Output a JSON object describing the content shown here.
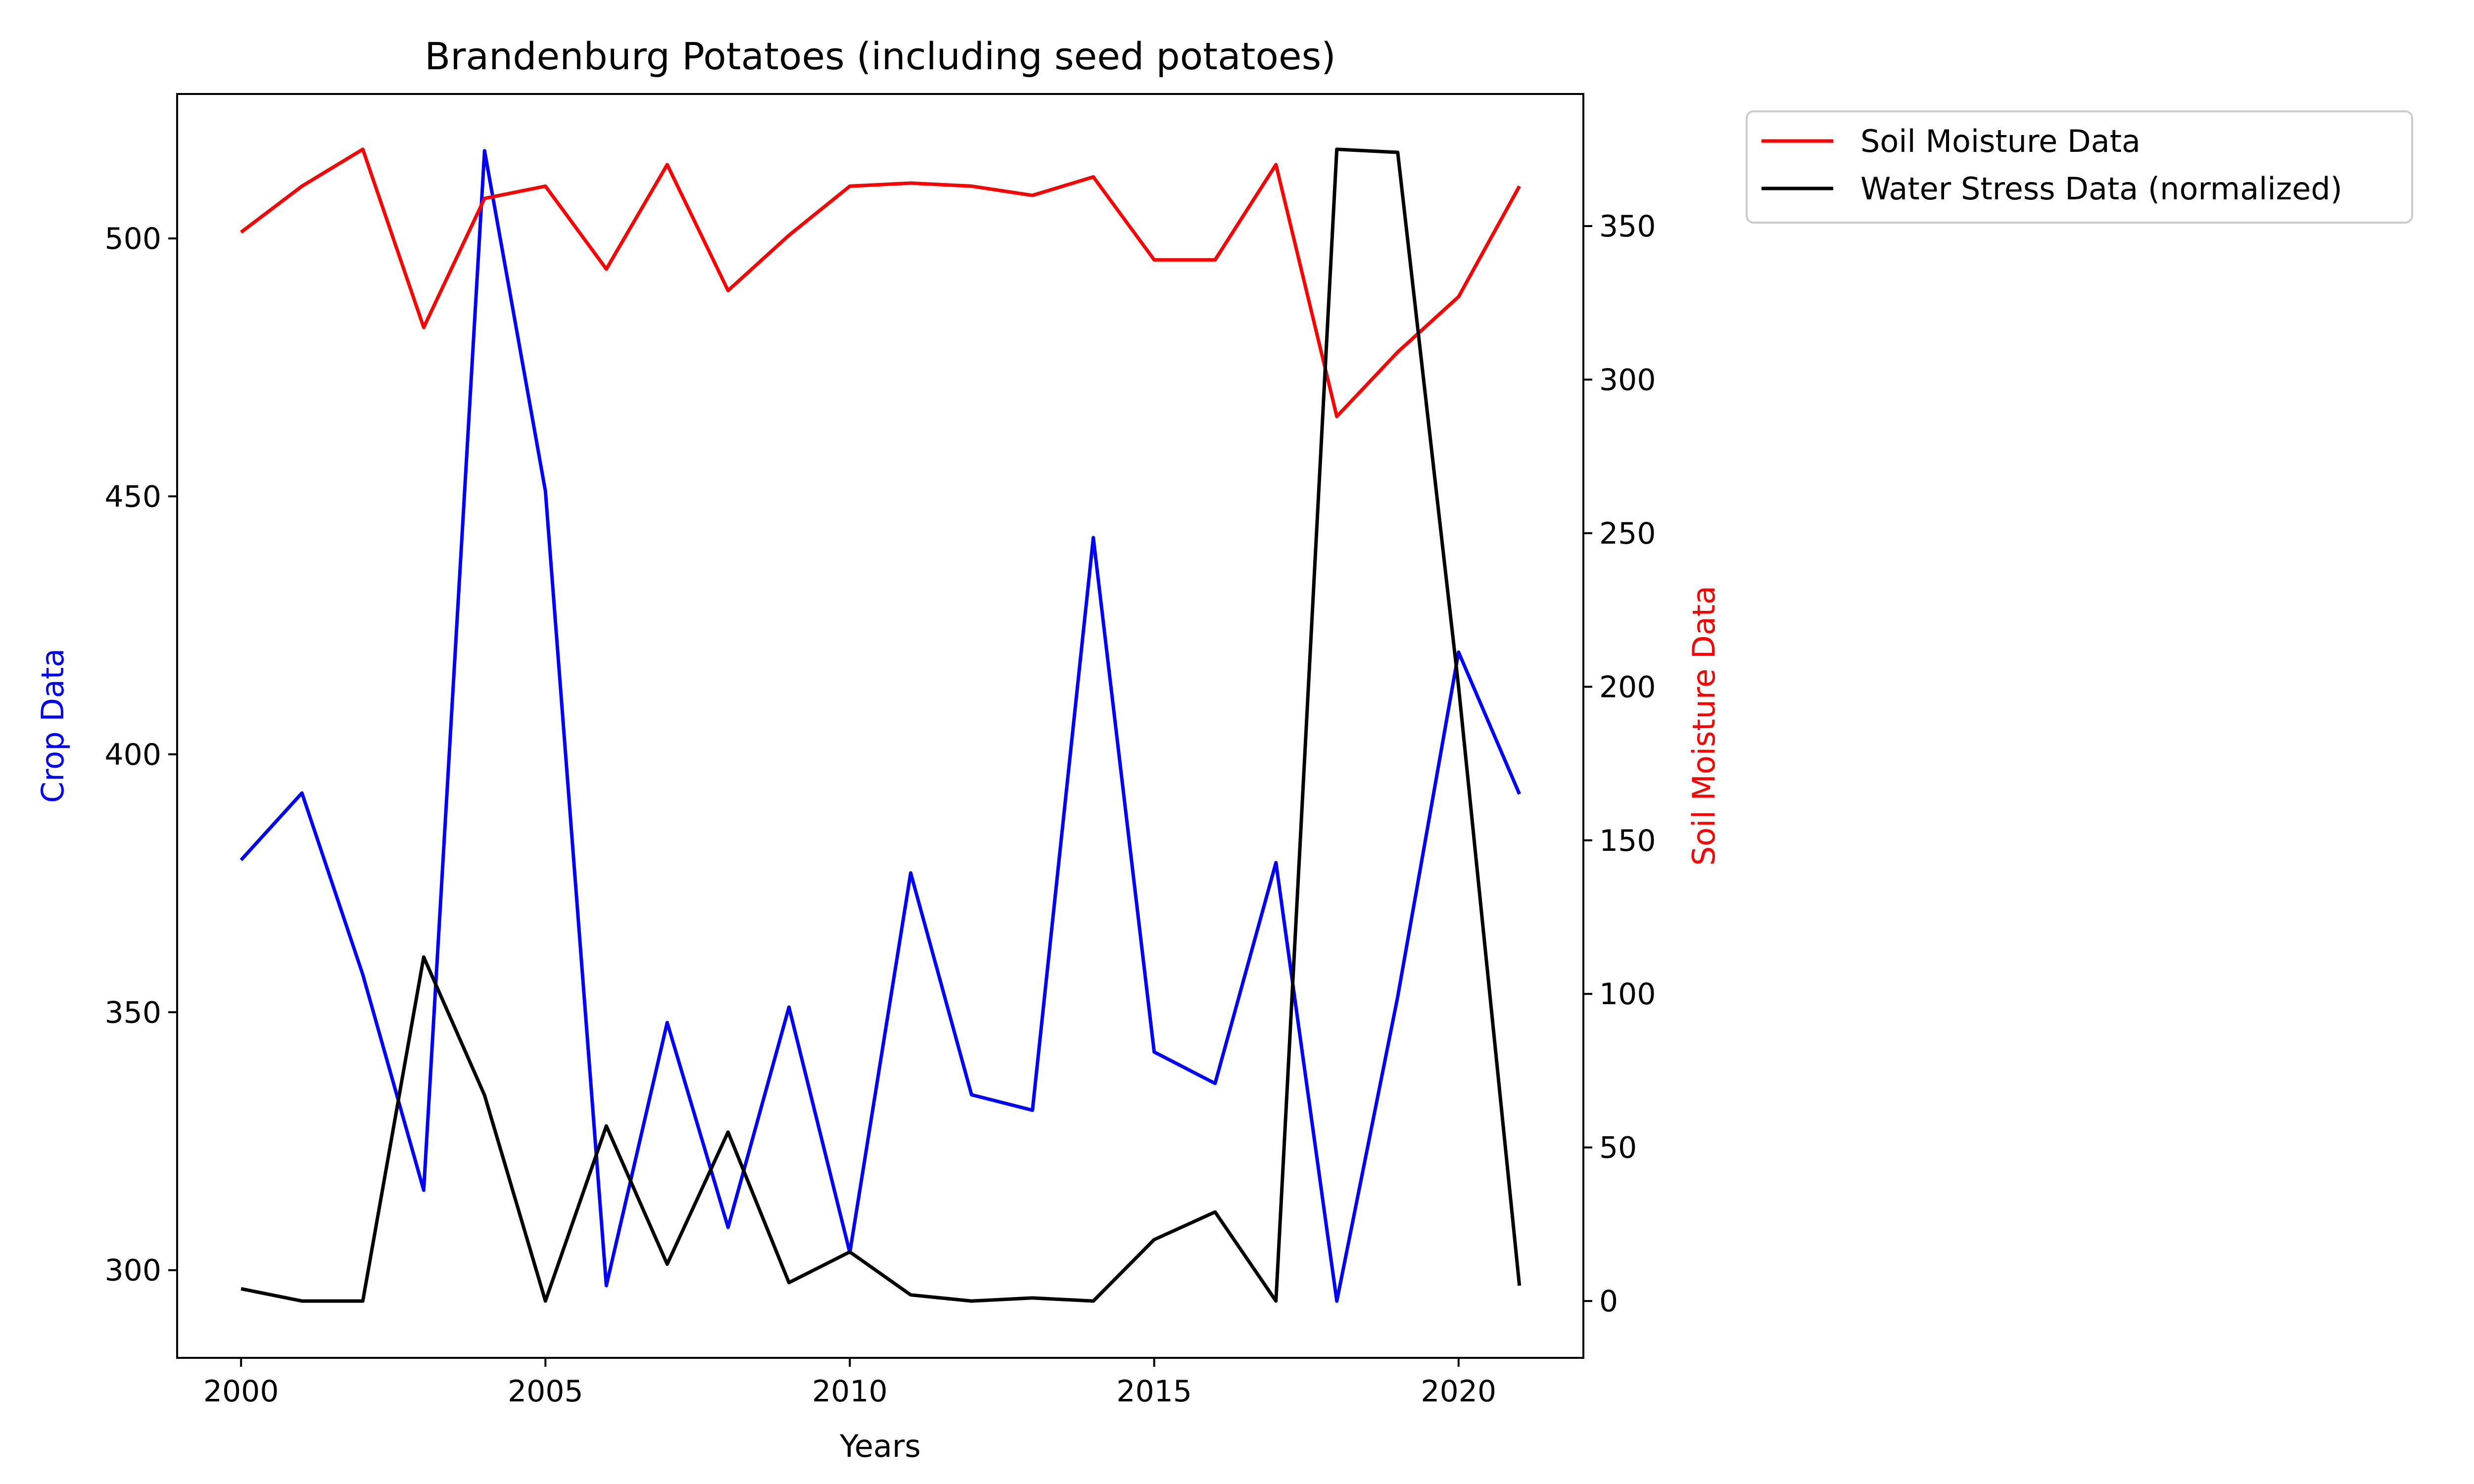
{
  "chart_data": {
    "type": "line",
    "title": "Brandenburg Potatoes (including seed potatoes)",
    "xlabel": "Years",
    "ylabel_left": "Crop Data",
    "ylabel_right": "Soil Moisture Data",
    "x": [
      2000,
      2001,
      2002,
      2003,
      2004,
      2005,
      2006,
      2007,
      2008,
      2009,
      2010,
      2011,
      2012,
      2013,
      2014,
      2015,
      2016,
      2017,
      2018,
      2019,
      2020,
      2021
    ],
    "xlim": [
      1998.95,
      2022.05
    ],
    "xticks": [
      2000,
      2005,
      2010,
      2015,
      2020
    ],
    "ylim_left": [
      283,
      528
    ],
    "yticks_left": [
      300,
      350,
      400,
      450,
      500
    ],
    "ylim_right": [
      -18.5,
      393
    ],
    "yticks_right": [
      0,
      50,
      100,
      150,
      200,
      250,
      300,
      350
    ],
    "grid": false,
    "legend_position": "outside-top-right",
    "series": [
      {
        "name": "Crop Data",
        "axis": "left",
        "color": "#0000ff",
        "in_legend": false,
        "values": [
          379.5,
          392.5,
          357.3,
          315.5,
          517.0,
          451.0,
          297.0,
          348.0,
          308.3,
          351.0,
          303.4,
          377.0,
          334.0,
          331.0,
          442.0,
          342.3,
          336.2,
          379.0,
          294.0,
          353.0,
          419.8,
          392.3
        ]
      },
      {
        "name": "Soil Moisture Data",
        "axis": "right",
        "color": "#ff0000",
        "in_legend": true,
        "values": [
          348,
          363,
          375,
          317,
          359,
          363,
          336,
          370,
          329,
          347,
          363,
          364,
          363,
          360,
          366,
          339,
          339,
          370,
          288,
          309,
          327,
          363
        ]
      },
      {
        "name": "Water Stress Data (normalized)",
        "axis": "right",
        "color": "#000000",
        "in_legend": true,
        "values": [
          4,
          0,
          0,
          112,
          67,
          0,
          57,
          12,
          55,
          6,
          16,
          2,
          0,
          1,
          0,
          20,
          29,
          0,
          375,
          374,
          200,
          5
        ]
      }
    ]
  },
  "colors": {
    "left_axis_label": "#0000ff",
    "right_axis_label": "#ff0000"
  }
}
